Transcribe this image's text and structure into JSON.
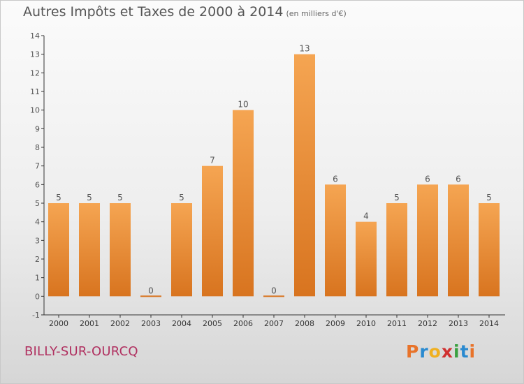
{
  "title": "Autres Impôts et Taxes de 2000 à 2014",
  "subtitle": "(en milliers d'€)",
  "commune": "BILLY-SUR-OURCQ",
  "logo": "Proxiti",
  "colors": {
    "bar_light": "#f5a552",
    "bar_dark": "#d8741f",
    "axis": "#333333",
    "text": "#555555",
    "commune": "#b03060"
  },
  "chart_data": {
    "type": "bar",
    "categories": [
      "2000",
      "2001",
      "2002",
      "2003",
      "2004",
      "2005",
      "2006",
      "2007",
      "2008",
      "2009",
      "2010",
      "2011",
      "2012",
      "2013",
      "2014"
    ],
    "values": [
      5,
      5,
      5,
      0,
      5,
      7,
      10,
      0,
      13,
      6,
      4,
      5,
      6,
      6,
      5
    ],
    "title": "Autres Impôts et Taxes de 2000 à 2014",
    "subtitle": "(en milliers d'€)",
    "ylim": [
      -1,
      14
    ],
    "yticks": [
      -1,
      0,
      1,
      2,
      3,
      4,
      5,
      6,
      7,
      8,
      9,
      10,
      11,
      12,
      13,
      14
    ],
    "grid": false,
    "legend": "none"
  }
}
